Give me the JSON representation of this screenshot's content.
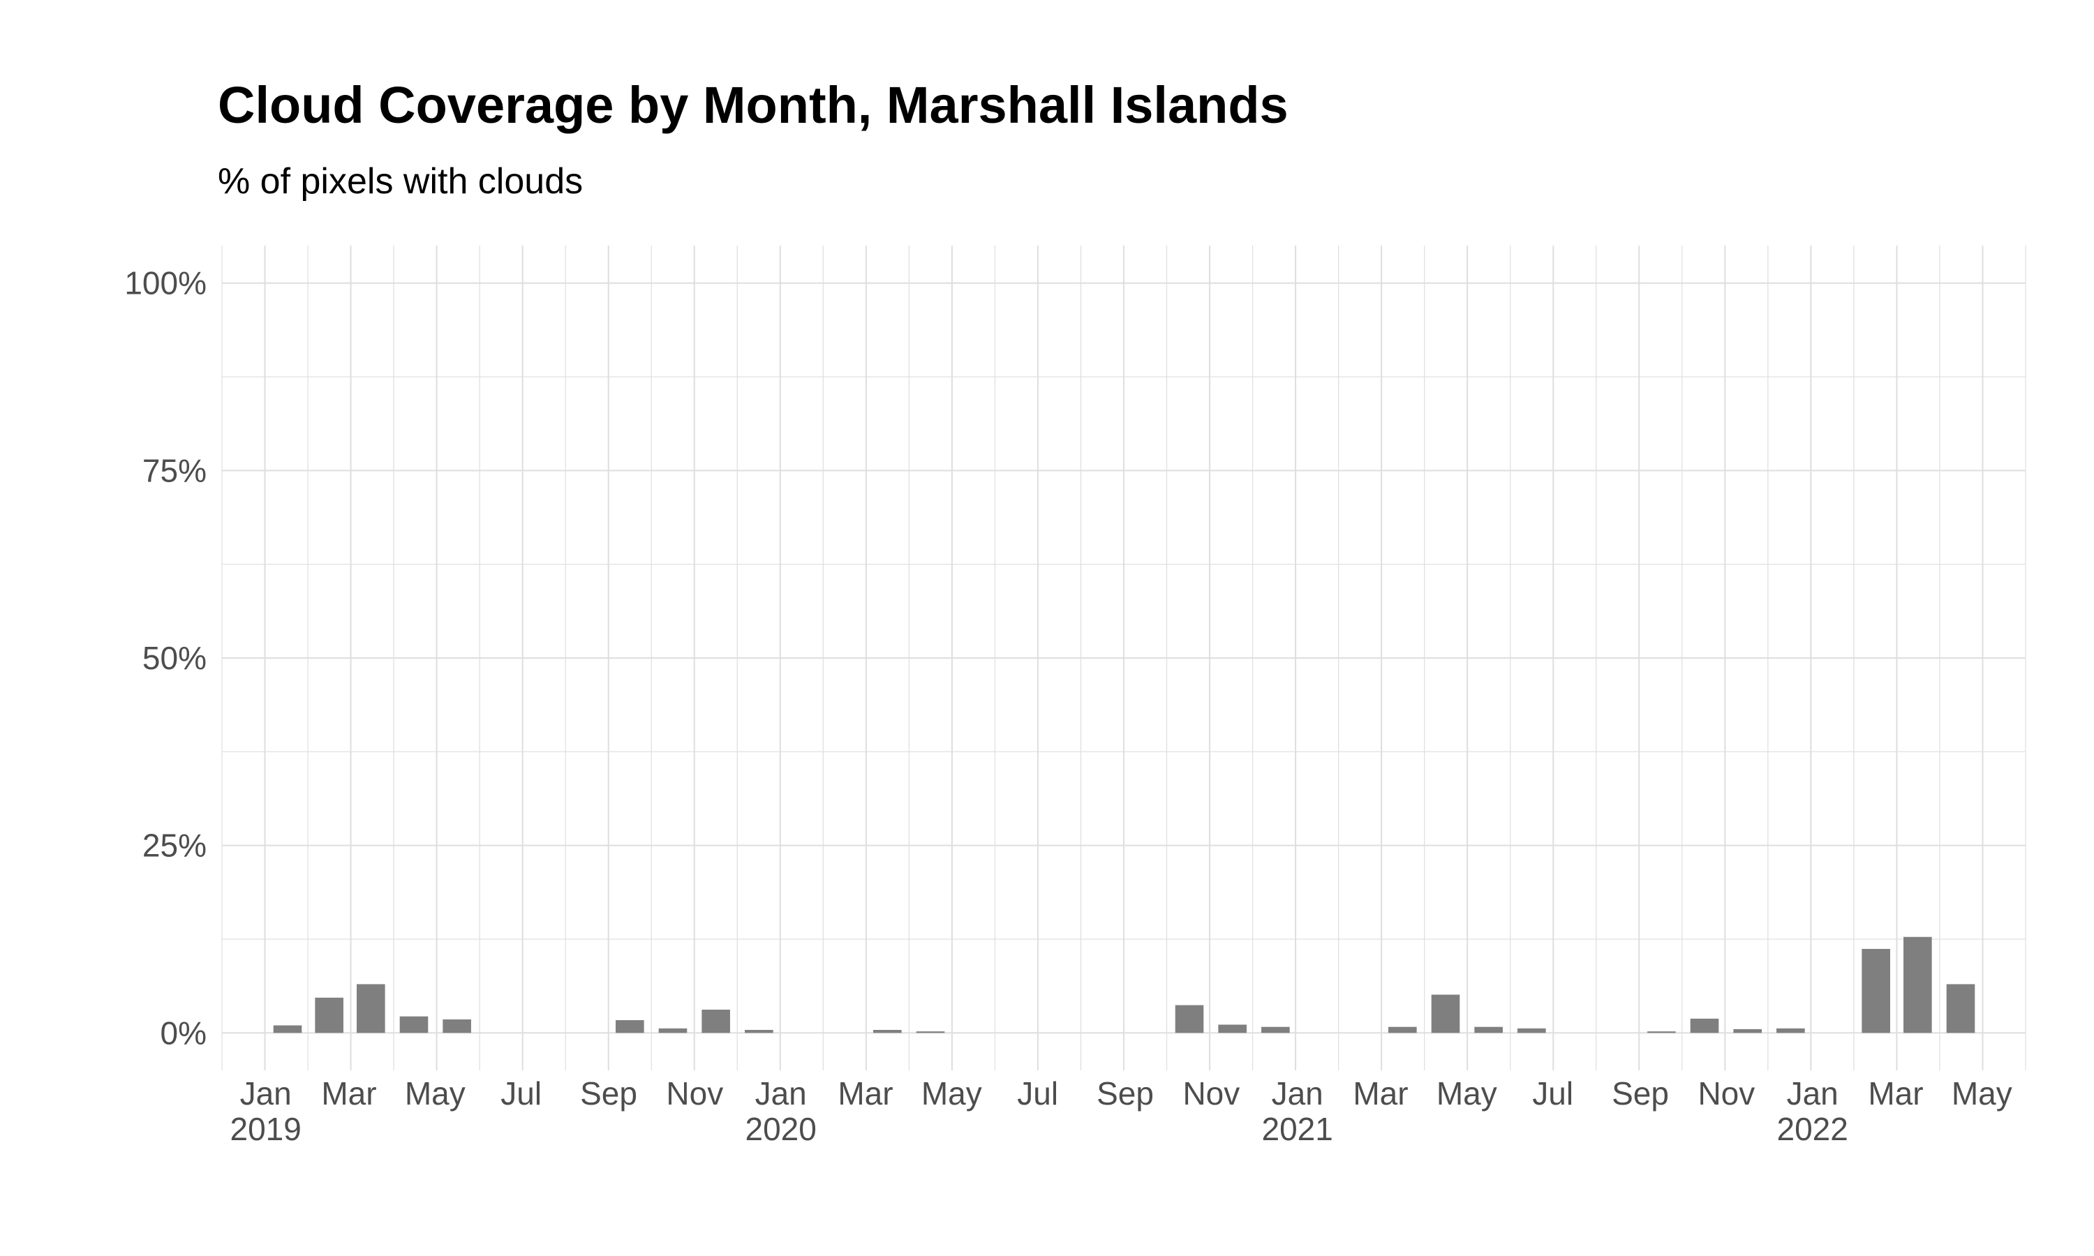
{
  "chart_data": {
    "type": "bar",
    "title": "Cloud Coverage by Month, Marshall Islands",
    "subtitle": "% of pixels with clouds",
    "xlabel": "",
    "ylabel": "",
    "ylim": [
      -0.05,
      1.05
    ],
    "grid": true,
    "bar_color": "#7f7f7f",
    "grid_color": "#dedede",
    "y_ticks": [
      {
        "value": 0,
        "label": "0%"
      },
      {
        "value": 0.25,
        "label": "25%"
      },
      {
        "value": 0.5,
        "label": "50%"
      },
      {
        "value": 0.75,
        "label": "75%"
      },
      {
        "value": 1.0,
        "label": "100%"
      }
    ],
    "x_ticks": [
      {
        "date": "2019-01",
        "month": "Jan",
        "year": "2019"
      },
      {
        "date": "2019-03",
        "month": "Mar",
        "year": ""
      },
      {
        "date": "2019-05",
        "month": "May",
        "year": ""
      },
      {
        "date": "2019-07",
        "month": "Jul",
        "year": ""
      },
      {
        "date": "2019-09",
        "month": "Sep",
        "year": ""
      },
      {
        "date": "2019-11",
        "month": "Nov",
        "year": ""
      },
      {
        "date": "2020-01",
        "month": "Jan",
        "year": "2020"
      },
      {
        "date": "2020-03",
        "month": "Mar",
        "year": ""
      },
      {
        "date": "2020-05",
        "month": "May",
        "year": ""
      },
      {
        "date": "2020-07",
        "month": "Jul",
        "year": ""
      },
      {
        "date": "2020-09",
        "month": "Sep",
        "year": ""
      },
      {
        "date": "2020-11",
        "month": "Nov",
        "year": ""
      },
      {
        "date": "2021-01",
        "month": "Jan",
        "year": "2021"
      },
      {
        "date": "2021-03",
        "month": "Mar",
        "year": ""
      },
      {
        "date": "2021-05",
        "month": "May",
        "year": ""
      },
      {
        "date": "2021-07",
        "month": "Jul",
        "year": ""
      },
      {
        "date": "2021-09",
        "month": "Sep",
        "year": ""
      },
      {
        "date": "2021-11",
        "month": "Nov",
        "year": ""
      },
      {
        "date": "2022-01",
        "month": "Jan",
        "year": "2022"
      },
      {
        "date": "2022-03",
        "month": "Mar",
        "year": ""
      },
      {
        "date": "2022-05",
        "month": "May",
        "year": ""
      }
    ],
    "x_range": [
      "2018-12",
      "2022-06"
    ],
    "bars": [
      {
        "x": "2019-01",
        "value": 0.01
      },
      {
        "x": "2019-02",
        "value": 0.047
      },
      {
        "x": "2019-03",
        "value": 0.065
      },
      {
        "x": "2019-04",
        "value": 0.022
      },
      {
        "x": "2019-05",
        "value": 0.018
      },
      {
        "x": "2019-09",
        "value": 0.017
      },
      {
        "x": "2019-10",
        "value": 0.006
      },
      {
        "x": "2019-11",
        "value": 0.031
      },
      {
        "x": "2019-12",
        "value": 0.004
      },
      {
        "x": "2020-03",
        "value": 0.004
      },
      {
        "x": "2020-04",
        "value": 0.002
      },
      {
        "x": "2020-10",
        "value": 0.037
      },
      {
        "x": "2020-11",
        "value": 0.011
      },
      {
        "x": "2020-12",
        "value": 0.008
      },
      {
        "x": "2021-03",
        "value": 0.008
      },
      {
        "x": "2021-04",
        "value": 0.051
      },
      {
        "x": "2021-05",
        "value": 0.008
      },
      {
        "x": "2021-06",
        "value": 0.006
      },
      {
        "x": "2021-09",
        "value": 0.002
      },
      {
        "x": "2021-10",
        "value": 0.019
      },
      {
        "x": "2021-11",
        "value": 0.005
      },
      {
        "x": "2021-12",
        "value": 0.006
      },
      {
        "x": "2022-02",
        "value": 0.112
      },
      {
        "x": "2022-03",
        "value": 0.128
      },
      {
        "x": "2022-04",
        "value": 0.065
      }
    ]
  }
}
